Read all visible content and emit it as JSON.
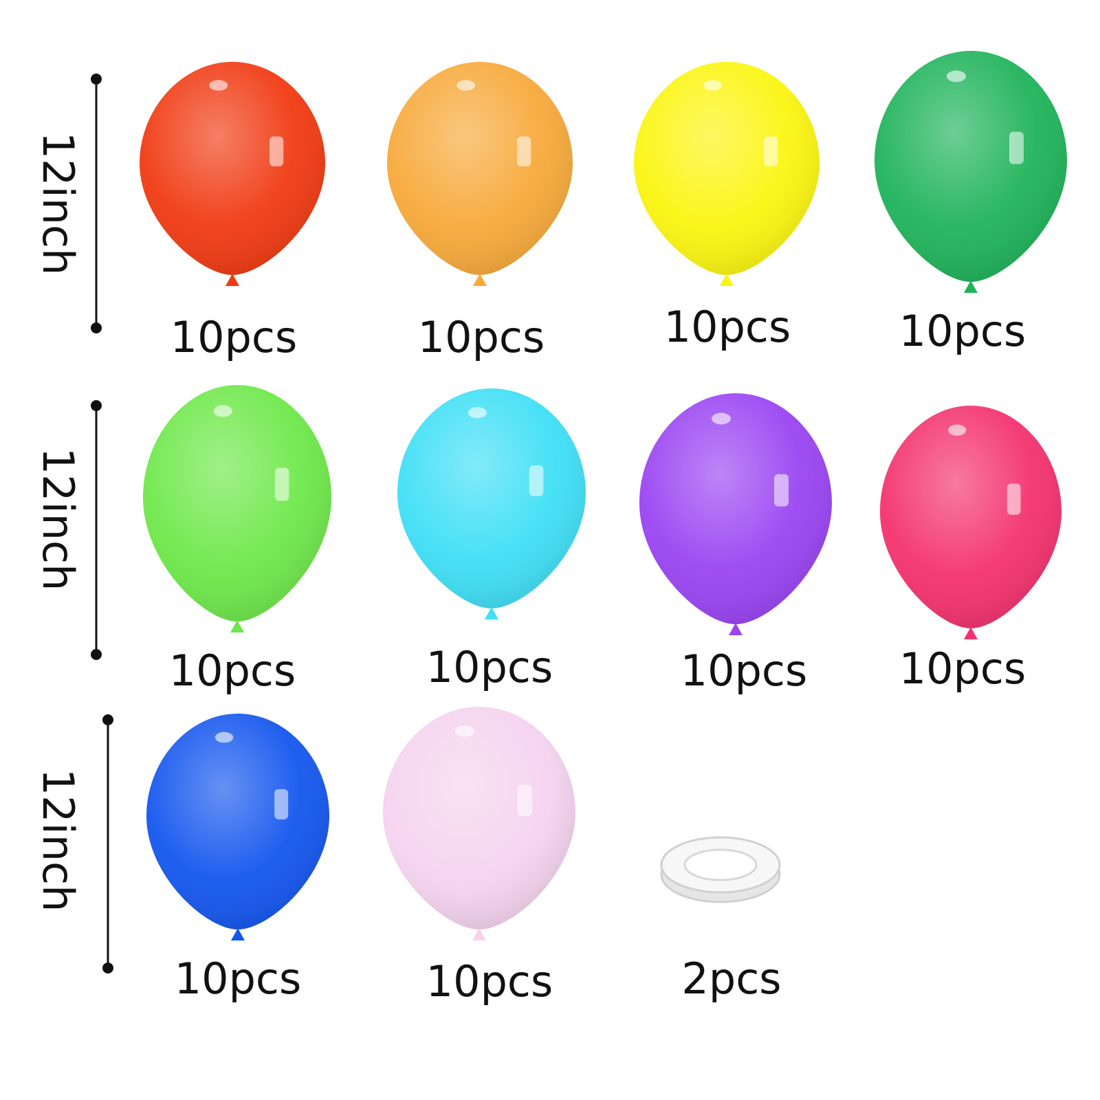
{
  "rows": [
    {
      "size": "12inch",
      "items": [
        "10pcs",
        "10pcs",
        "10pcs",
        "10pcs"
      ]
    },
    {
      "size": "12inch",
      "items": [
        "10pcs",
        "10pcs",
        "10pcs",
        "10pcs"
      ]
    },
    {
      "size": "12inch",
      "items": [
        "10pcs",
        "10pcs",
        "2pcs"
      ]
    }
  ]
}
